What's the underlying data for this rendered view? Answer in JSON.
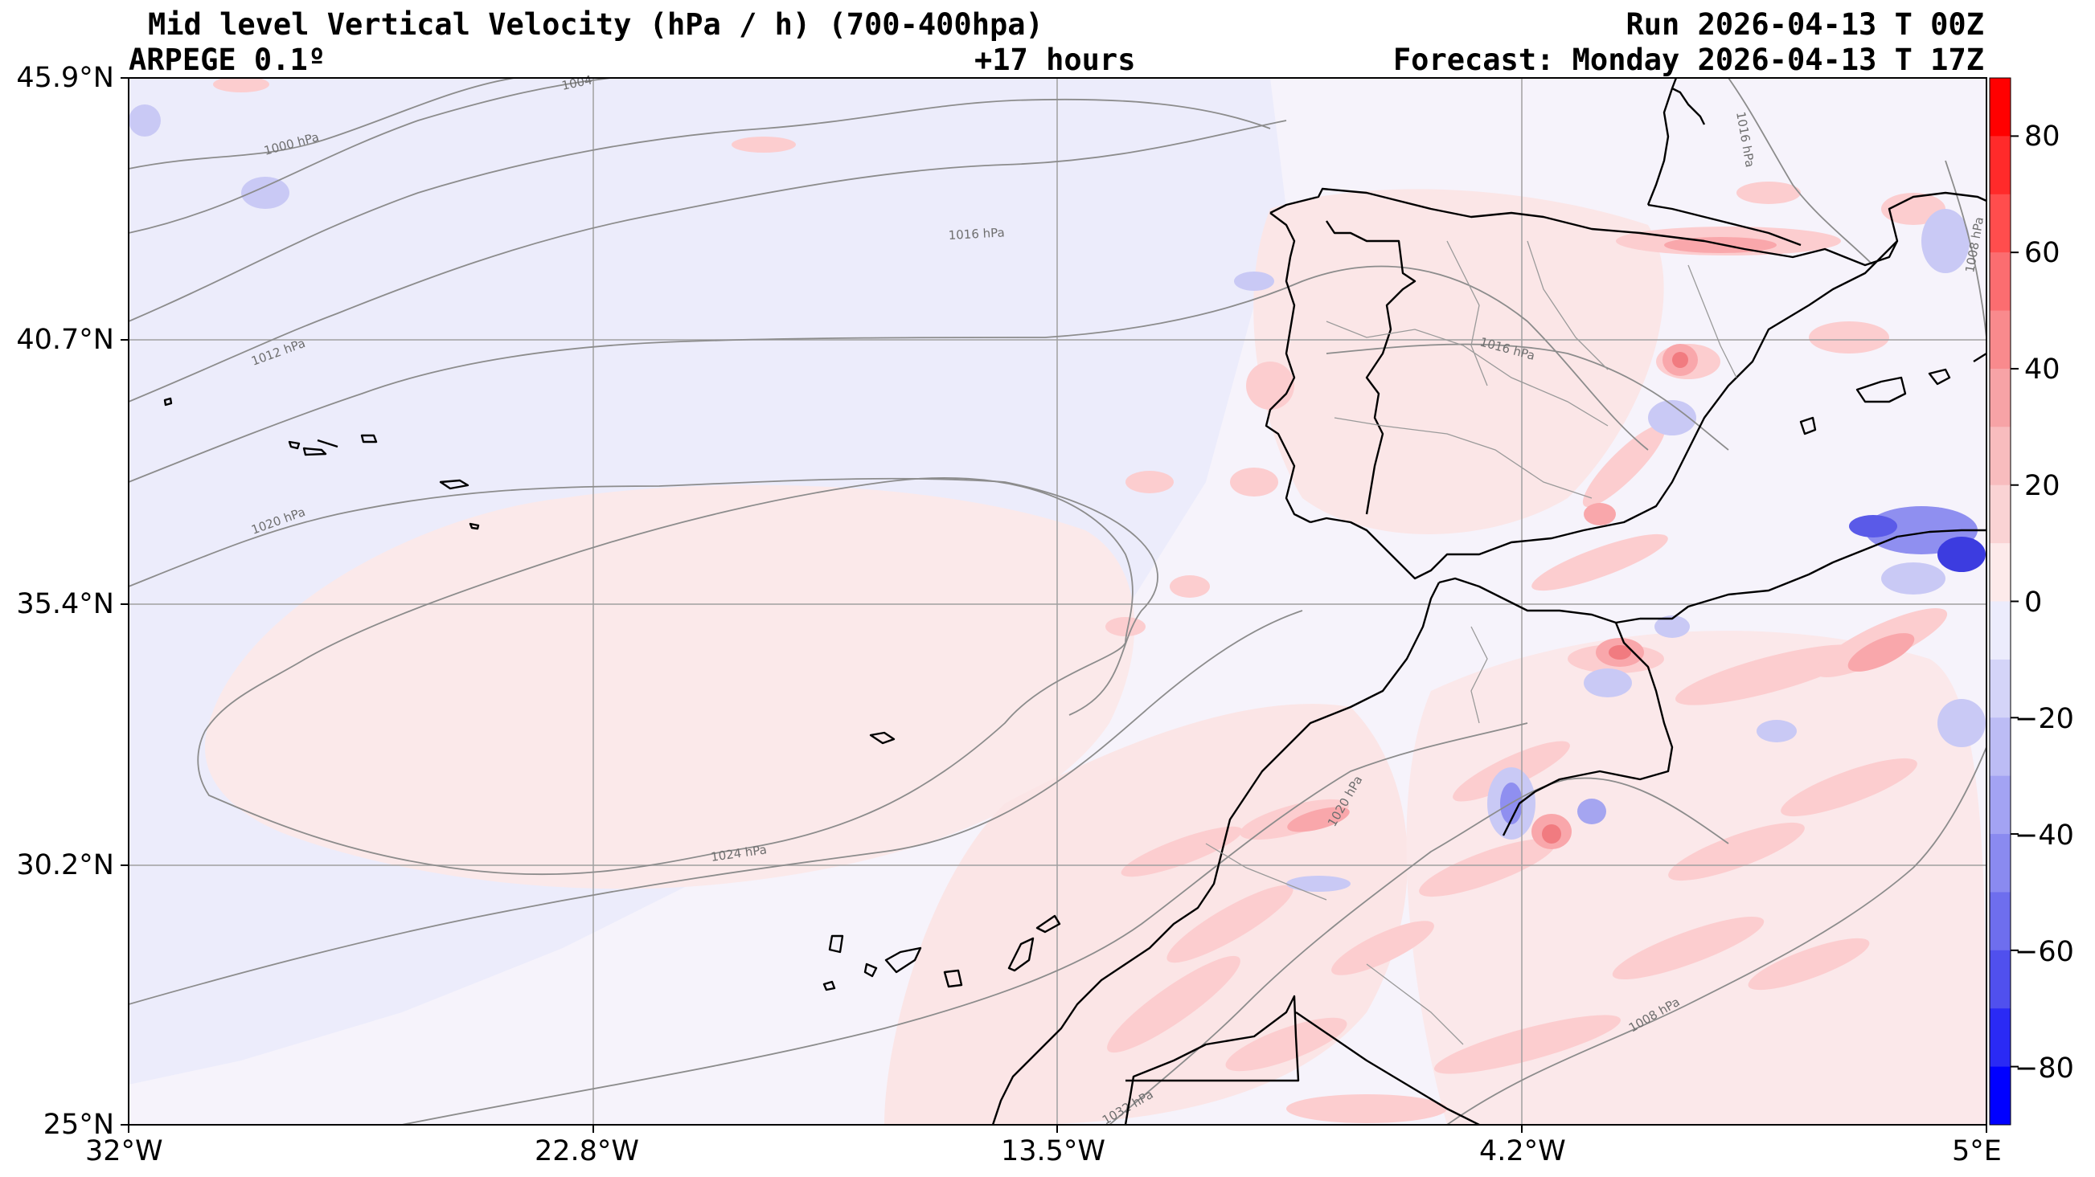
{
  "header": {
    "title": "Mid level Vertical Velocity (hPa / h)  (700-400hpa)",
    "model": "ARPEGE 0.1º",
    "lead_time": "+17 hours",
    "run": "Run 2026-04-13 T 00Z",
    "forecast": "Forecast: Monday 2026-04-13 T 17Z"
  },
  "axes": {
    "lat_labels": [
      "45.9°N",
      "40.7°N",
      "35.4°N",
      "30.2°N",
      "25°N"
    ],
    "lon_labels": [
      "32°W",
      "22.8°W",
      "13.5°W",
      "4.2°W",
      "5°E"
    ]
  },
  "isobars": [
    "1000 hPa",
    "1004 hPa",
    "1008 hPa",
    "1012 hPa",
    "1016 hPa",
    "1020 hPa",
    "1024 hPa"
  ],
  "colorbar": {
    "tick_labels": [
      "80",
      "60",
      "40",
      "20",
      "0",
      "−20",
      "−40",
      "−60",
      "−80"
    ],
    "levels": [
      90,
      80,
      70,
      60,
      50,
      40,
      30,
      20,
      10,
      0,
      -10,
      -20,
      -30,
      -40,
      -50,
      -60,
      -70,
      -80,
      -90
    ],
    "colors": {
      "pos_max": "#ff0000",
      "pos_light": "#fde8e8",
      "neg_light": "#ececfc",
      "neg_max": "#0000ff",
      "isobar": "#8c8c8c",
      "coast": "#000000",
      "grid": "#a0a0a0"
    }
  }
}
